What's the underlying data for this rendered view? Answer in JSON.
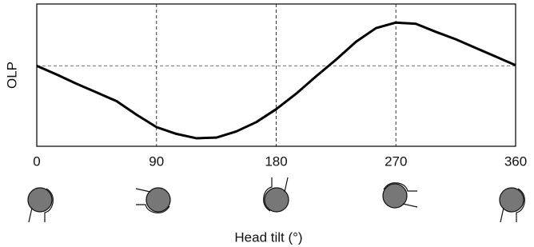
{
  "chart_data": {
    "type": "line",
    "x_label": "Head tilt (°)",
    "y_label": "OLP",
    "x": [
      0,
      15,
      30,
      45,
      60,
      75,
      90,
      105,
      120,
      135,
      150,
      165,
      180,
      195,
      210,
      225,
      240,
      255,
      270,
      285,
      300,
      315,
      330,
      345,
      360
    ],
    "series": [
      {
        "color": "#000000",
        "values": [
          0,
          -0.14,
          -0.29,
          -0.43,
          -0.57,
          -0.79,
          -0.99,
          -1.1,
          -1.17,
          -1.16,
          -1.06,
          -0.91,
          -0.7,
          -0.45,
          -0.17,
          0.1,
          0.39,
          0.61,
          0.7,
          0.68,
          0.55,
          0.43,
          0.29,
          0.15,
          0.01
        ]
      }
    ],
    "xlim": [
      0,
      360
    ],
    "xticks": [
      0,
      90,
      180,
      270,
      360
    ],
    "ylim": [
      -1.3,
      1
    ],
    "reference_line": 0,
    "grid": true
  }
}
